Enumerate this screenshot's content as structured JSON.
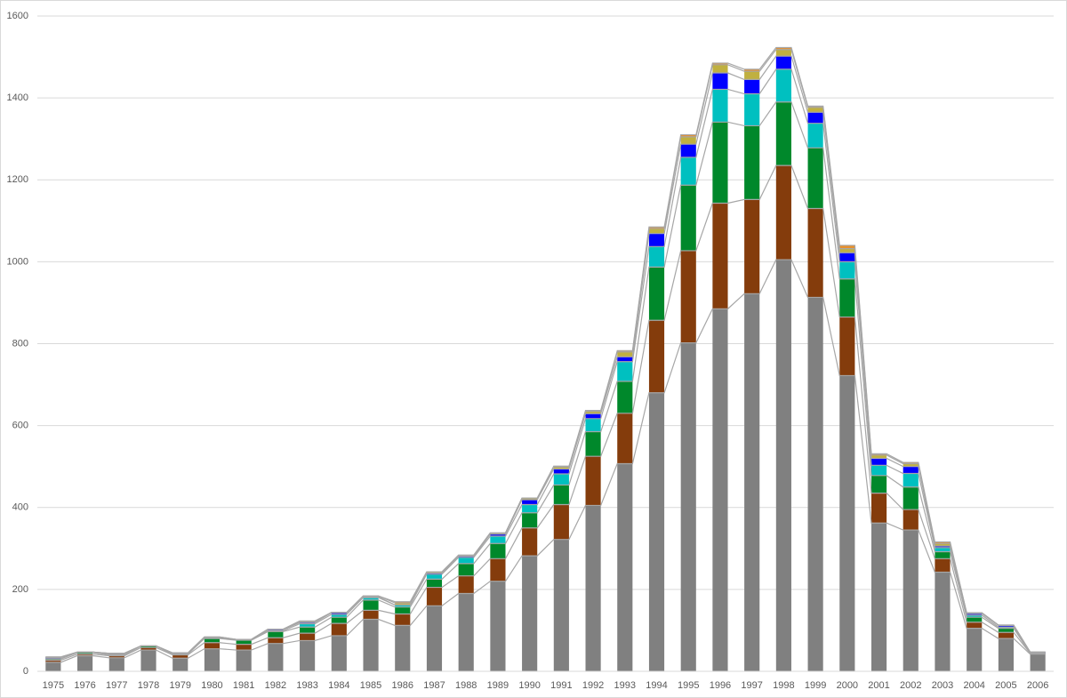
{
  "chart_data": {
    "type": "stacked-bar",
    "categories": [
      "1975",
      "1976",
      "1977",
      "1978",
      "1979",
      "1980",
      "1981",
      "1982",
      "1983",
      "1984",
      "1985",
      "1986",
      "1987",
      "1988",
      "1989",
      "1990",
      "1991",
      "1992",
      "1993",
      "1994",
      "1995",
      "1996",
      "1997",
      "1998",
      "1999",
      "2000",
      "2001",
      "2002",
      "2003",
      "2004",
      "2005",
      "2006"
    ],
    "series": [
      {
        "color": "#808080",
        "values": [
          22,
          38,
          33,
          52,
          32,
          55,
          52,
          68,
          75,
          87,
          127,
          112,
          160,
          190,
          220,
          282,
          322,
          405,
          507,
          680,
          802,
          885,
          922,
          1005,
          913,
          722,
          362,
          345,
          242,
          105,
          80,
          42
        ]
      },
      {
        "color": "#843c0c",
        "values": [
          5,
          4,
          5,
          6,
          8,
          15,
          14,
          14,
          18,
          30,
          22,
          28,
          45,
          43,
          55,
          68,
          85,
          120,
          123,
          177,
          225,
          258,
          230,
          230,
          217,
          143,
          73,
          50,
          33,
          15,
          15,
          2
        ]
      },
      {
        "color": "#00882b",
        "values": [
          3,
          4,
          2,
          4,
          2,
          10,
          10,
          15,
          15,
          15,
          25,
          17,
          20,
          30,
          37,
          37,
          48,
          60,
          78,
          130,
          160,
          198,
          180,
          155,
          148,
          93,
          43,
          55,
          17,
          12,
          10,
          0
        ]
      },
      {
        "color": "#00c0c0",
        "values": [
          1,
          0,
          1,
          0,
          0,
          2,
          1,
          2,
          8,
          7,
          6,
          5,
          12,
          15,
          18,
          20,
          27,
          32,
          48,
          50,
          68,
          80,
          78,
          80,
          60,
          42,
          25,
          33,
          10,
          5,
          3,
          0
        ]
      },
      {
        "color": "#0000ff",
        "values": [
          3,
          1,
          3,
          0,
          3,
          0,
          1,
          3,
          3,
          4,
          2,
          0,
          3,
          3,
          5,
          12,
          12,
          12,
          12,
          32,
          32,
          40,
          35,
          32,
          27,
          22,
          17,
          17,
          4,
          4,
          4,
          3
        ]
      },
      {
        "color": "#c0b040",
        "values": [
          1,
          0,
          0,
          0,
          0,
          2,
          0,
          1,
          2,
          1,
          2,
          5,
          3,
          2,
          3,
          4,
          5,
          6,
          12,
          12,
          18,
          20,
          20,
          16,
          12,
          10,
          8,
          7,
          6,
          2,
          1,
          0
        ]
      },
      {
        "color": "#e8902c",
        "values": [
          0,
          0,
          0,
          0,
          0,
          0,
          0,
          0,
          2,
          0,
          0,
          3,
          0,
          1,
          0,
          0,
          2,
          2,
          3,
          4,
          5,
          4,
          5,
          5,
          3,
          8,
          3,
          3,
          4,
          0,
          0,
          0
        ]
      }
    ],
    "ylim": [
      0,
      1600
    ],
    "yticks": [
      0,
      200,
      400,
      600,
      800,
      1000,
      1200,
      1400,
      1600
    ],
    "grid": true
  }
}
